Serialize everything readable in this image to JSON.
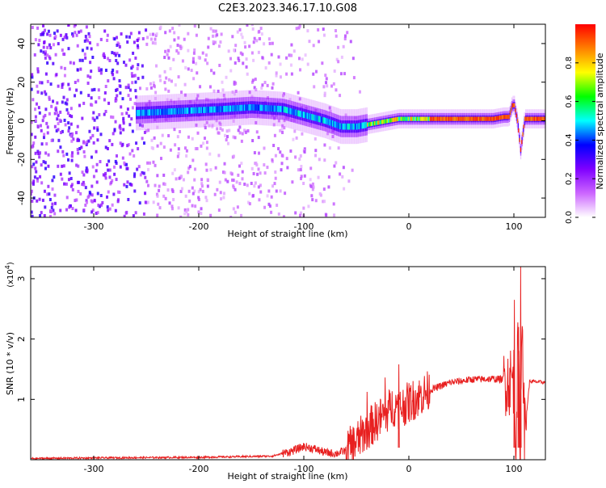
{
  "title": "C2E3.2023.346.17.10.G08",
  "chart_data": [
    {
      "type": "heatmap",
      "xlabel": "Height of straight line (km)",
      "ylabel": "Frequency (Hz)",
      "xlim": [
        -360,
        130
      ],
      "ylim": [
        -50,
        50
      ],
      "xticks": [
        -300,
        -200,
        -100,
        0,
        100
      ],
      "yticks": [
        -40,
        -20,
        0,
        20,
        40
      ],
      "colorbar": {
        "label": "Normalized spectral amplitude",
        "range": [
          0,
          1
        ],
        "ticks": [
          0.0,
          0.2,
          0.4,
          0.6,
          0.8
        ],
        "tick_labels": [
          "0.0",
          "0.2",
          "0.4",
          "0.6",
          "0.8"
        ],
        "colors": [
          "#ffffff",
          "#cc66ff",
          "#7f00ff",
          "#0000ff",
          "#00ffff",
          "#00ff00",
          "#ffff00",
          "#ff8000",
          "#ff0000"
        ]
      },
      "ridge": {
        "x": [
          -260,
          -220,
          -180,
          -150,
          -120,
          -100,
          -80,
          -65,
          -50,
          -40,
          -30,
          -20,
          -10,
          0,
          20,
          40,
          60,
          80,
          90,
          95,
          98,
          100,
          103,
          106,
          110,
          130
        ],
        "y": [
          4,
          5,
          6,
          7,
          6,
          3,
          0,
          -3,
          -3,
          -2,
          -1,
          0,
          1,
          1,
          1,
          1,
          1,
          1,
          2,
          2,
          8,
          8,
          0,
          -15,
          1,
          1
        ]
      }
    },
    {
      "type": "line",
      "xlabel": "Height of straight line (km)",
      "ylabel": "SNR (10 * v/v)",
      "y_multiplier": "(x10",
      "y_multiplier_exp": "4",
      "y_multiplier_close": ")",
      "xlim": [
        -360,
        130
      ],
      "ylim": [
        0,
        3.2
      ],
      "xticks": [
        -300,
        -200,
        -100,
        0,
        100
      ],
      "yticks": [
        1,
        2,
        3
      ],
      "series": [
        {
          "color": "#e82020",
          "x": [
            -360,
            -300,
            -200,
            -130,
            -110,
            -100,
            -90,
            -80,
            -70,
            -60,
            -50,
            -40,
            -30,
            -20,
            -15,
            -10,
            0,
            10,
            20,
            30,
            40,
            60,
            80,
            90,
            95,
            100,
            102,
            104,
            106,
            108,
            110,
            115,
            130
          ],
          "y": [
            0.02,
            0.03,
            0.04,
            0.06,
            0.15,
            0.22,
            0.18,
            0.12,
            0.1,
            0.15,
            0.3,
            0.5,
            0.65,
            0.8,
            0.9,
            0.85,
            0.95,
            1.05,
            1.15,
            1.22,
            1.28,
            1.33,
            1.34,
            1.33,
            1.3,
            1.35,
            0.3,
            2.0,
            0.1,
            2.6,
            0.4,
            1.3,
            1.28
          ]
        }
      ]
    }
  ]
}
